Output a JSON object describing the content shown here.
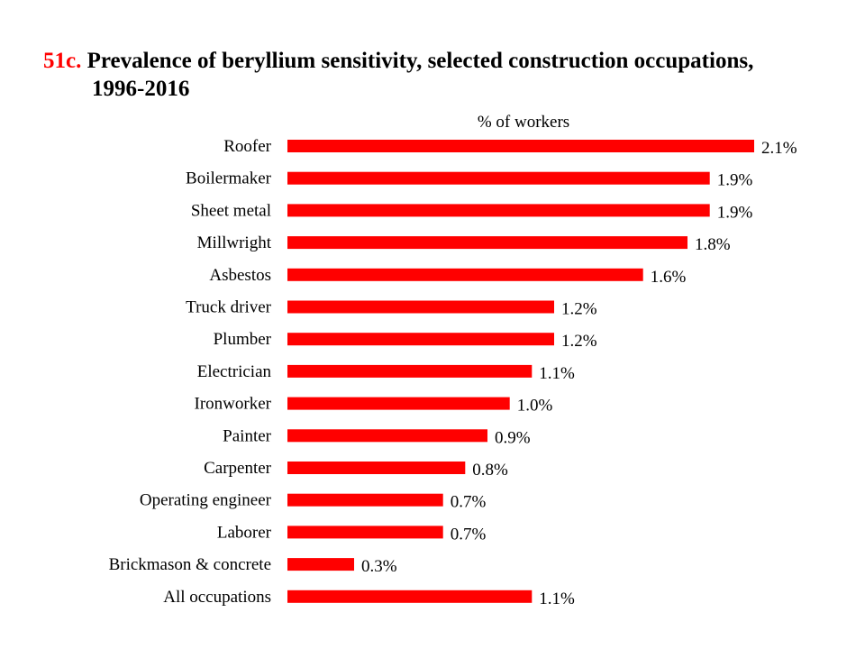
{
  "title": {
    "figure_number": "51c.",
    "line1": "Prevalence of beryllium sensitivity, selected construction occupations,",
    "line2": "1996-2016"
  },
  "colors": {
    "bar": "#ff0000",
    "figure_number": "#ff0000",
    "text": "#000000"
  },
  "chart_data": {
    "type": "bar",
    "orientation": "horizontal",
    "title": "Prevalence of beryllium sensitivity, selected construction occupations, 1996-2016",
    "xlabel": "% of workers",
    "ylabel": "",
    "xlim": [
      0,
      2.1
    ],
    "grid": false,
    "legend": "none",
    "categories": [
      "Roofer",
      "Boilermaker",
      "Sheet metal",
      "Millwright",
      "Asbestos",
      "Truck driver",
      "Plumber",
      "Electrician",
      "Ironworker",
      "Painter",
      "Carpenter",
      "Operating engineer",
      "Laborer",
      "Brickmason & concrete",
      "All occupations"
    ],
    "values": [
      2.1,
      1.9,
      1.9,
      1.8,
      1.6,
      1.2,
      1.2,
      1.1,
      1.0,
      0.9,
      0.8,
      0.7,
      0.7,
      0.3,
      1.1
    ],
    "data_labels": [
      "2.1%",
      "1.9%",
      "1.9%",
      "1.8%",
      "1.6%",
      "1.2%",
      "1.2%",
      "1.1%",
      "1.0%",
      "0.9%",
      "0.8%",
      "0.7%",
      "0.7%",
      "0.3%",
      "1.1%"
    ]
  }
}
